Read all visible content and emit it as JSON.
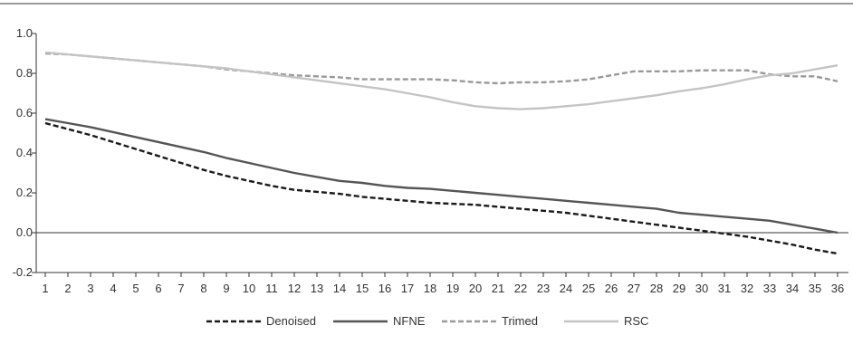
{
  "chart_data": {
    "type": "line",
    "title": "",
    "xlabel": "",
    "ylabel": "",
    "x": [
      1,
      2,
      3,
      4,
      5,
      6,
      7,
      8,
      9,
      10,
      11,
      12,
      13,
      14,
      15,
      16,
      17,
      18,
      19,
      20,
      21,
      22,
      23,
      24,
      25,
      26,
      27,
      28,
      29,
      30,
      31,
      32,
      33,
      34,
      35,
      36
    ],
    "ylim": [
      -0.2,
      1.0
    ],
    "yticks": [
      "-0.2",
      "0.0",
      "0.2",
      "0.4",
      "0.6",
      "0.8",
      "1.0"
    ],
    "ytick_values": [
      -0.2,
      0.0,
      0.2,
      0.4,
      0.6,
      0.8,
      1.0
    ],
    "grid": false,
    "legend_position": "bottom",
    "series": [
      {
        "name": "Denoised",
        "color": "#1a1a1a",
        "dash": "dashed",
        "values": [
          0.55,
          0.52,
          0.49,
          0.455,
          0.42,
          0.385,
          0.35,
          0.315,
          0.285,
          0.26,
          0.235,
          0.215,
          0.205,
          0.195,
          0.18,
          0.17,
          0.16,
          0.15,
          0.145,
          0.14,
          0.13,
          0.12,
          0.11,
          0.1,
          0.085,
          0.07,
          0.055,
          0.04,
          0.025,
          0.01,
          -0.005,
          -0.02,
          -0.04,
          -0.06,
          -0.085,
          -0.105
        ]
      },
      {
        "name": "NFNE",
        "color": "#555555",
        "dash": "solid",
        "values": [
          0.57,
          0.55,
          0.53,
          0.505,
          0.48,
          0.455,
          0.43,
          0.405,
          0.375,
          0.35,
          0.325,
          0.3,
          0.28,
          0.26,
          0.25,
          0.235,
          0.225,
          0.22,
          0.21,
          0.2,
          0.19,
          0.18,
          0.17,
          0.16,
          0.15,
          0.14,
          0.13,
          0.12,
          0.1,
          0.09,
          0.08,
          0.07,
          0.06,
          0.04,
          0.02,
          0.0
        ]
      },
      {
        "name": "Trimed",
        "color": "#999999",
        "dash": "dashed",
        "values": [
          0.9,
          0.895,
          0.885,
          0.875,
          0.865,
          0.855,
          0.845,
          0.835,
          0.82,
          0.81,
          0.8,
          0.79,
          0.785,
          0.78,
          0.77,
          0.77,
          0.77,
          0.77,
          0.765,
          0.755,
          0.75,
          0.755,
          0.755,
          0.76,
          0.77,
          0.79,
          0.81,
          0.81,
          0.81,
          0.815,
          0.815,
          0.815,
          0.795,
          0.785,
          0.785,
          0.76
        ]
      },
      {
        "name": "RSC",
        "color": "#c4c4c4",
        "dash": "solid",
        "values": [
          0.905,
          0.895,
          0.885,
          0.875,
          0.865,
          0.855,
          0.845,
          0.835,
          0.825,
          0.81,
          0.795,
          0.78,
          0.765,
          0.75,
          0.735,
          0.72,
          0.7,
          0.68,
          0.655,
          0.635,
          0.625,
          0.62,
          0.625,
          0.635,
          0.645,
          0.66,
          0.675,
          0.69,
          0.71,
          0.725,
          0.745,
          0.77,
          0.79,
          0.8,
          0.82,
          0.84
        ]
      }
    ]
  }
}
